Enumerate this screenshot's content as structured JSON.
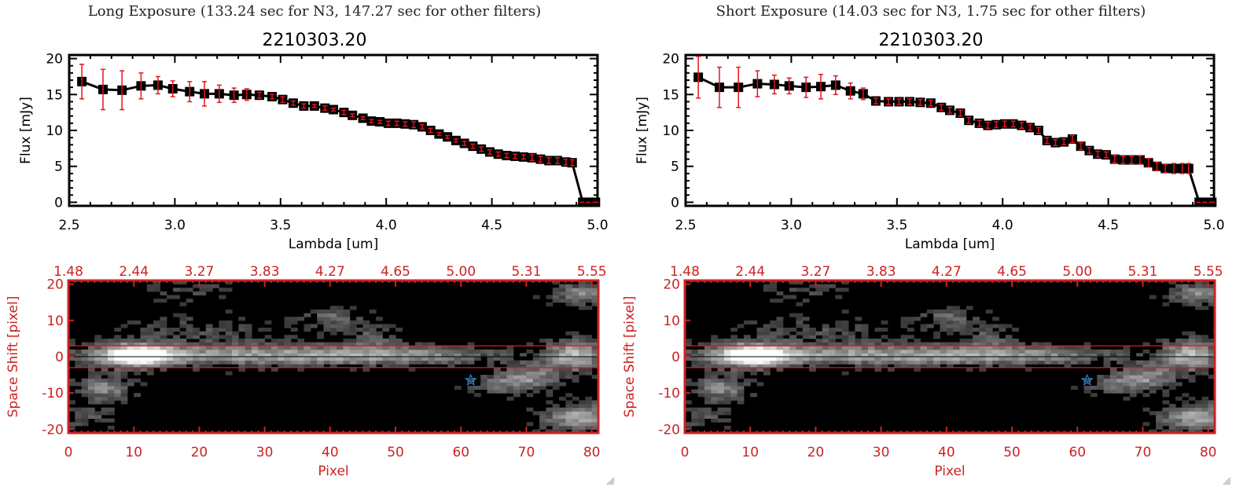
{
  "panels": [
    {
      "id": "long",
      "exposure_title": "Long Exposure (133.24 sec for N3, 147.27 sec for other filters)",
      "source_id": "2210303.20",
      "spectrum": {
        "ylabel": "Flux [mJy]",
        "xlabel": "Lambda [um]",
        "x_ticks": [
          "2.5",
          "3.0",
          "3.5",
          "4.0",
          "4.5",
          "5.0"
        ],
        "y_ticks": [
          "0",
          "5",
          "10",
          "15",
          "20"
        ]
      },
      "image": {
        "ylabel": "Space Shift [pixel]",
        "xlabel": "Pixel",
        "x_ticks": [
          "0",
          "10",
          "20",
          "30",
          "40",
          "50",
          "60",
          "70",
          "80"
        ],
        "y_ticks": [
          "20",
          "10",
          "0",
          "-10",
          "-20"
        ],
        "top_ticks": [
          "1.48",
          "2.44",
          "3.27",
          "3.83",
          "4.27",
          "4.65",
          "5.00",
          "5.31",
          "5.55"
        ],
        "marker": "star-icon"
      }
    },
    {
      "id": "short",
      "exposure_title": "Short Exposure (14.03 sec for N3, 1.75 sec for other filters)",
      "source_id": "2210303.20",
      "spectrum": {
        "ylabel": "Flux [mJy]",
        "xlabel": "Lambda [um]",
        "x_ticks": [
          "2.5",
          "3.0",
          "3.5",
          "4.0",
          "4.5",
          "5.0"
        ],
        "y_ticks": [
          "0",
          "5",
          "10",
          "15",
          "20"
        ]
      },
      "image": {
        "ylabel": "Space Shift [pixel]",
        "xlabel": "Pixel",
        "x_ticks": [
          "0",
          "10",
          "20",
          "30",
          "40",
          "50",
          "60",
          "70",
          "80"
        ],
        "y_ticks": [
          "20",
          "10",
          "0",
          "-10",
          "-20"
        ],
        "top_ticks": [
          "1.48",
          "2.44",
          "3.27",
          "3.83",
          "4.27",
          "4.65",
          "5.00",
          "5.31",
          "5.55"
        ],
        "marker": "star-icon"
      }
    }
  ],
  "colors": {
    "spectrum_line": "#000000",
    "error_bar": "#e8141c",
    "image_axis": "#cc2222",
    "aperture_line": "#e8141c",
    "star_marker": "#2f8ff0"
  },
  "chart_data": [
    {
      "type": "line",
      "title": "2210303.20",
      "subtitle": "Long Exposure (133.24 sec for N3, 147.27 sec for other filters)",
      "xlabel": "Lambda [um]",
      "ylabel": "Flux [mJy]",
      "xlim": [
        2.5,
        5.0
      ],
      "ylim": [
        -0.5,
        20.5
      ],
      "grid": false,
      "x": [
        2.56,
        2.66,
        2.75,
        2.84,
        2.92,
        2.99,
        3.07,
        3.14,
        3.21,
        3.28,
        3.34,
        3.4,
        3.46,
        3.51,
        3.56,
        3.61,
        3.66,
        3.71,
        3.75,
        3.8,
        3.84,
        3.89,
        3.93,
        3.97,
        4.01,
        4.05,
        4.09,
        4.13,
        4.17,
        4.21,
        4.25,
        4.29,
        4.33,
        4.37,
        4.41,
        4.45,
        4.49,
        4.53,
        4.57,
        4.61,
        4.65,
        4.69,
        4.73,
        4.77,
        4.81,
        4.85,
        4.88,
        4.93,
        4.96,
        4.99
      ],
      "y": [
        16.8,
        15.7,
        15.6,
        16.2,
        16.3,
        15.8,
        15.4,
        15.1,
        15.1,
        14.9,
        15.0,
        14.9,
        14.7,
        14.3,
        13.8,
        13.4,
        13.4,
        13.1,
        12.9,
        12.5,
        12.1,
        11.7,
        11.3,
        11.2,
        11.0,
        11.0,
        10.9,
        10.8,
        10.5,
        10.0,
        9.5,
        9.1,
        8.6,
        8.2,
        7.8,
        7.4,
        7.0,
        6.7,
        6.5,
        6.4,
        6.3,
        6.2,
        6.0,
        5.8,
        5.8,
        5.6,
        5.5,
        0.0,
        0.0,
        0.0
      ],
      "yerr": [
        2.4,
        2.8,
        2.7,
        1.8,
        1.2,
        1.1,
        1.4,
        1.7,
        1.2,
        1.0,
        0.8,
        0.4,
        0.3,
        0.4,
        0.3,
        0.3,
        0.2,
        0.3,
        0.2,
        0.3,
        0.2,
        0.2,
        0.2,
        0.2,
        0.3,
        0.3,
        0.3,
        0.4,
        0.3,
        0.3,
        0.2,
        0.2,
        0.2,
        0.3,
        0.3,
        0.3,
        0.3,
        0.3,
        0.3,
        0.3,
        0.3,
        0.4,
        0.4,
        0.4,
        0.4,
        0.4,
        0.4,
        0.0,
        0.0,
        0.0
      ]
    },
    {
      "type": "line",
      "title": "2210303.20",
      "subtitle": "Short Exposure (14.03 sec for N3, 1.75 sec for other filters)",
      "xlabel": "Lambda [um]",
      "ylabel": "Flux [mJy]",
      "xlim": [
        2.5,
        5.0
      ],
      "ylim": [
        -0.5,
        20.5
      ],
      "grid": false,
      "x": [
        2.56,
        2.66,
        2.75,
        2.84,
        2.92,
        2.99,
        3.07,
        3.14,
        3.21,
        3.28,
        3.34,
        3.4,
        3.46,
        3.51,
        3.56,
        3.61,
        3.66,
        3.71,
        3.75,
        3.8,
        3.84,
        3.89,
        3.93,
        3.97,
        4.01,
        4.05,
        4.09,
        4.13,
        4.17,
        4.21,
        4.25,
        4.29,
        4.33,
        4.37,
        4.41,
        4.45,
        4.49,
        4.53,
        4.57,
        4.61,
        4.65,
        4.69,
        4.73,
        4.77,
        4.81,
        4.85,
        4.88,
        4.93,
        4.96,
        4.99
      ],
      "y": [
        17.4,
        16.0,
        16.0,
        16.5,
        16.4,
        16.2,
        16.0,
        16.1,
        16.3,
        15.5,
        15.1,
        14.1,
        14.0,
        14.0,
        14.0,
        13.9,
        13.8,
        13.2,
        12.8,
        12.4,
        11.4,
        11.0,
        10.7,
        10.8,
        10.9,
        10.9,
        10.7,
        10.4,
        10.0,
        8.6,
        8.3,
        8.4,
        8.8,
        7.8,
        7.2,
        6.7,
        6.6,
        6.0,
        5.9,
        5.9,
        5.9,
        5.5,
        5.0,
        4.7,
        4.7,
        4.7,
        4.7,
        0.0,
        0.0,
        0.0
      ],
      "yerr": [
        2.9,
        2.8,
        2.8,
        1.8,
        1.3,
        1.1,
        1.4,
        1.7,
        1.3,
        1.1,
        0.8,
        0.4,
        0.4,
        0.4,
        0.4,
        0.4,
        0.4,
        0.4,
        0.4,
        0.4,
        0.4,
        0.4,
        0.4,
        0.4,
        0.4,
        0.4,
        0.4,
        0.4,
        0.4,
        0.4,
        0.4,
        0.4,
        0.5,
        0.5,
        0.4,
        0.4,
        0.4,
        0.5,
        0.5,
        0.5,
        0.6,
        0.6,
        0.6,
        0.6,
        0.7,
        0.7,
        0.7,
        0.0,
        0.0,
        0.0
      ]
    }
  ]
}
